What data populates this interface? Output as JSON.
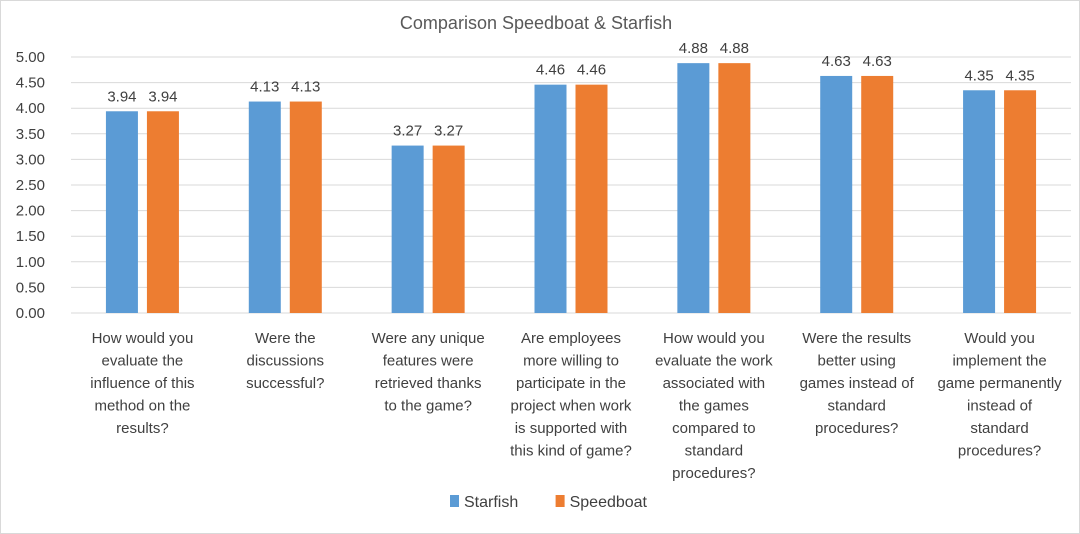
{
  "chart_data": {
    "type": "bar",
    "title": "Comparison Speedboat & Starfish",
    "xlabel": "",
    "ylabel": "",
    "ylim": [
      0,
      5
    ],
    "ytick_step": 0.5,
    "yticks": [
      "0.00",
      "0.50",
      "1.00",
      "1.50",
      "2.00",
      "2.50",
      "3.00",
      "3.50",
      "4.00",
      "4.50",
      "5.00"
    ],
    "grid": true,
    "legend_position": "bottom",
    "categories": [
      [
        "How would you",
        "evaluate the",
        "influence of this",
        "method on the",
        "results?"
      ],
      [
        "Were the",
        "discussions",
        "successful?"
      ],
      [
        "Were any unique",
        "features were",
        "retrieved thanks",
        "to the game?"
      ],
      [
        "Are employees",
        "more willing to",
        "participate in the",
        "project when work",
        "is supported with",
        "this kind of game?"
      ],
      [
        "How would you",
        "evaluate the work",
        "associated with",
        "the games",
        "compared to",
        "standard",
        "procedures?"
      ],
      [
        "Were the results",
        "better using",
        "games instead of",
        "standard",
        "procedures?"
      ],
      [
        "Would you",
        "implement the",
        "game permanently",
        "instead of",
        "standard",
        "procedures?"
      ]
    ],
    "series": [
      {
        "name": "Starfish",
        "color": "#5b9bd5",
        "values": [
          3.94,
          4.13,
          3.27,
          4.46,
          4.88,
          4.63,
          4.35
        ]
      },
      {
        "name": "Speedboat",
        "color": "#ed7d31",
        "values": [
          3.94,
          4.13,
          3.27,
          4.46,
          4.88,
          4.63,
          4.35
        ]
      }
    ],
    "data_labels": true
  }
}
